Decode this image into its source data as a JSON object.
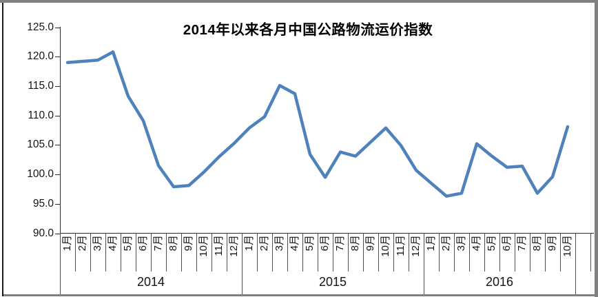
{
  "window": {
    "frame_color": "#808080",
    "left_edge_color": "#1a1a1a",
    "background": "#ffffff"
  },
  "chart_data": {
    "type": "line",
    "title": "2014年以来各月中国公路物流运价指数",
    "xlabel": "",
    "ylabel": "",
    "ylim": [
      90,
      125
    ],
    "ytick_step": 5,
    "ytick_labels": [
      "125.0",
      "120.0",
      "115.0",
      "110.0",
      "105.0",
      "100.0",
      "95.0",
      "90.0"
    ],
    "grid": false,
    "legend": "none",
    "line_color": "#4F81BD",
    "year_groups": [
      {
        "label": "2014",
        "months": [
          "1月",
          "2月",
          "3月",
          "4月",
          "5月",
          "6月",
          "7月",
          "8月",
          "9月",
          "10月",
          "11月",
          "12月"
        ]
      },
      {
        "label": "2015",
        "months": [
          "1月",
          "2月",
          "3月",
          "4月",
          "5月",
          "6月",
          "7月",
          "8月",
          "9月",
          "10月",
          "11月",
          "12月"
        ]
      },
      {
        "label": "2016",
        "months": [
          "1月",
          "2月",
          "3月",
          "4月",
          "5月",
          "6月",
          "7月",
          "8月",
          "9月",
          "10月"
        ]
      }
    ],
    "values": [
      119.0,
      119.2,
      119.4,
      120.8,
      113.3,
      109.1,
      101.5,
      97.9,
      98.1,
      100.4,
      103.0,
      105.3,
      107.9,
      109.8,
      115.1,
      113.7,
      103.4,
      99.5,
      103.8,
      103.1,
      105.5,
      107.9,
      104.9,
      100.7,
      98.5,
      96.3,
      96.8,
      105.2,
      103.1,
      101.2,
      101.4,
      96.8,
      99.6,
      108.1
    ]
  }
}
